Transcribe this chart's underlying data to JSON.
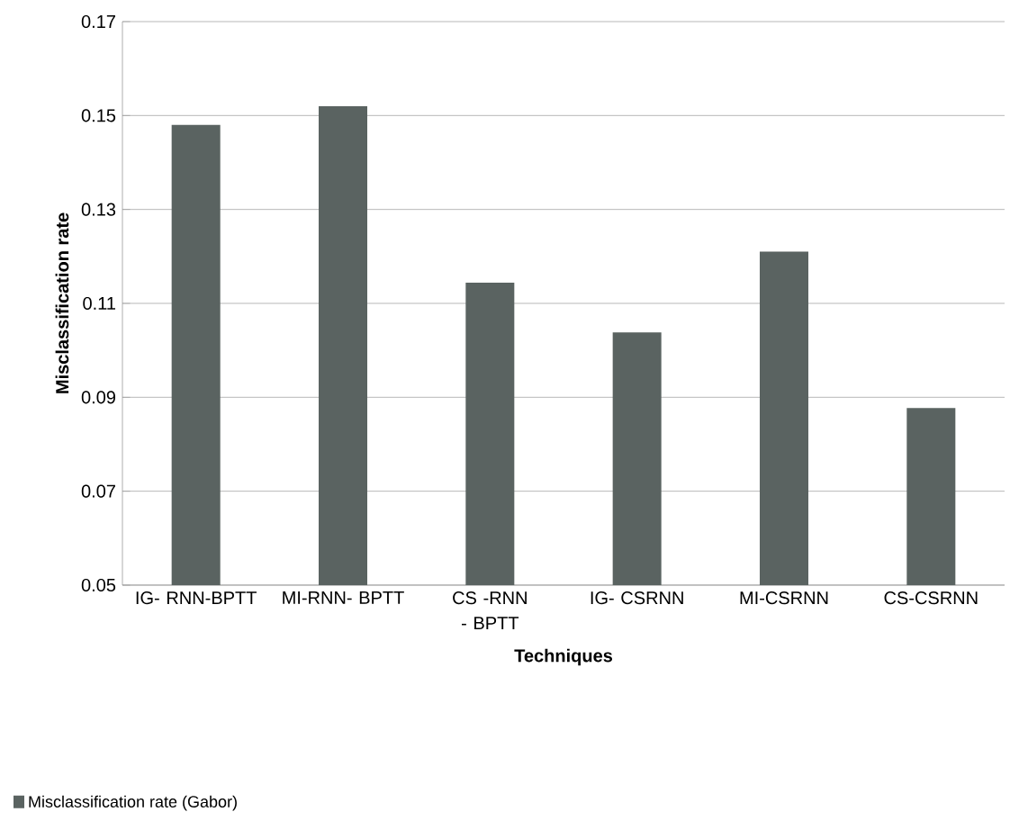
{
  "chart_data": {
    "type": "bar",
    "xlabel": "Techniques",
    "ylabel": "Misclassification  rate",
    "categories": [
      "IG- RNN-BPTT",
      "MI-RNN- BPTT",
      "CS -RNN - BPTT",
      "IG- CSRNN",
      "MI-CSRNN",
      "CS-CSRNN"
    ],
    "series": [
      {
        "name": "Misclassification rate (Gabor)",
        "color": "#5a6361",
        "values": [
          0.148,
          0.152,
          0.1144,
          0.1038,
          0.121,
          0.0877
        ]
      }
    ],
    "ylim": [
      0.05,
      0.17
    ],
    "yticks": [
      0.05,
      0.07,
      0.09,
      0.11,
      0.13,
      0.15,
      0.17
    ],
    "grid": "y",
    "legend": "bottom left"
  }
}
